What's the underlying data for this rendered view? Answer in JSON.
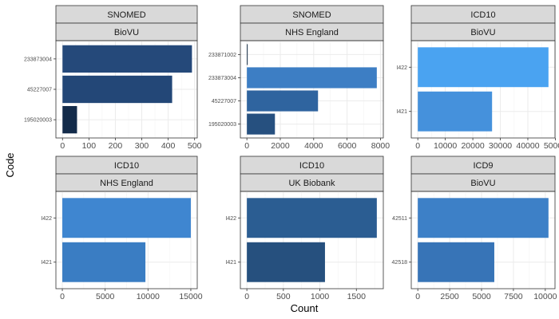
{
  "chart_data": {
    "type": "bar",
    "orientation": "horizontal",
    "layout": "facet-grid",
    "xlabel": "Count",
    "ylabel": "Code",
    "grid": true,
    "facets": [
      {
        "strip_top": "SNOMED",
        "strip_bottom": "BioVU",
        "categories": [
          "233873004",
          "45227007",
          "195020003"
        ],
        "values": [
          490,
          415,
          55
        ],
        "colors": [
          "#25497a",
          "#234777",
          "#132b4a"
        ],
        "xlim": [
          -25,
          510
        ],
        "xticks": [
          0,
          100,
          200,
          300,
          400,
          500
        ],
        "xtick_labels": [
          "0",
          "100",
          "200",
          "300",
          "400",
          "500"
        ]
      },
      {
        "strip_top": "SNOMED",
        "strip_bottom": "NHS England",
        "categories": [
          "233871002",
          "233873004",
          "45227007",
          "195020003"
        ],
        "values": [
          20,
          7780,
          4260,
          1680
        ],
        "colors": [
          "#132b43",
          "#3d7ec4",
          "#2f649f",
          "#26507f"
        ],
        "xlim": [
          -390,
          8170
        ],
        "xticks": [
          0,
          2000,
          4000,
          6000,
          8000
        ],
        "xtick_labels": [
          "0",
          "2000",
          "4000",
          "6000",
          "8000"
        ]
      },
      {
        "strip_top": "ICD10",
        "strip_bottom": "BioVU",
        "categories": [
          "I422",
          "I421"
        ],
        "values": [
          47500,
          27000
        ],
        "colors": [
          "#4aa3f1",
          "#4591dc"
        ],
        "xlim": [
          -2375,
          49875
        ],
        "xticks": [
          0,
          10000,
          20000,
          30000,
          40000,
          50000
        ],
        "xtick_labels": [
          "0",
          "10000",
          "20000",
          "30000",
          "40000",
          "50000"
        ]
      },
      {
        "strip_top": "ICD10",
        "strip_bottom": "NHS England",
        "categories": [
          "I422",
          "I421"
        ],
        "values": [
          15000,
          9700
        ],
        "colors": [
          "#3f86d0",
          "#3a7dc3"
        ],
        "xlim": [
          -750,
          15750
        ],
        "xticks": [
          0,
          5000,
          10000,
          15000
        ],
        "xtick_labels": [
          "0",
          "5000",
          "10000",
          "15000"
        ]
      },
      {
        "strip_top": "ICD10",
        "strip_bottom": "UK Biobank",
        "categories": [
          "I422",
          "I421"
        ],
        "values": [
          1780,
          1070
        ],
        "colors": [
          "#2b5d92",
          "#26507e"
        ],
        "xlim": [
          -89,
          1869
        ],
        "xticks": [
          0,
          500,
          1000,
          1500
        ],
        "xtick_labels": [
          "0",
          "500",
          "1000",
          "1500"
        ]
      },
      {
        "strip_top": "ICD9",
        "strip_bottom": "BioVU",
        "categories": [
          "42511",
          "42518"
        ],
        "values": [
          10250,
          6000
        ],
        "colors": [
          "#3d80c7",
          "#3774b7"
        ],
        "xlim": [
          -512,
          10762
        ],
        "xticks": [
          0,
          2500,
          5000,
          7500,
          10000
        ],
        "xtick_labels": [
          "0",
          "2500",
          "5000",
          "7500",
          "10000"
        ]
      }
    ]
  }
}
